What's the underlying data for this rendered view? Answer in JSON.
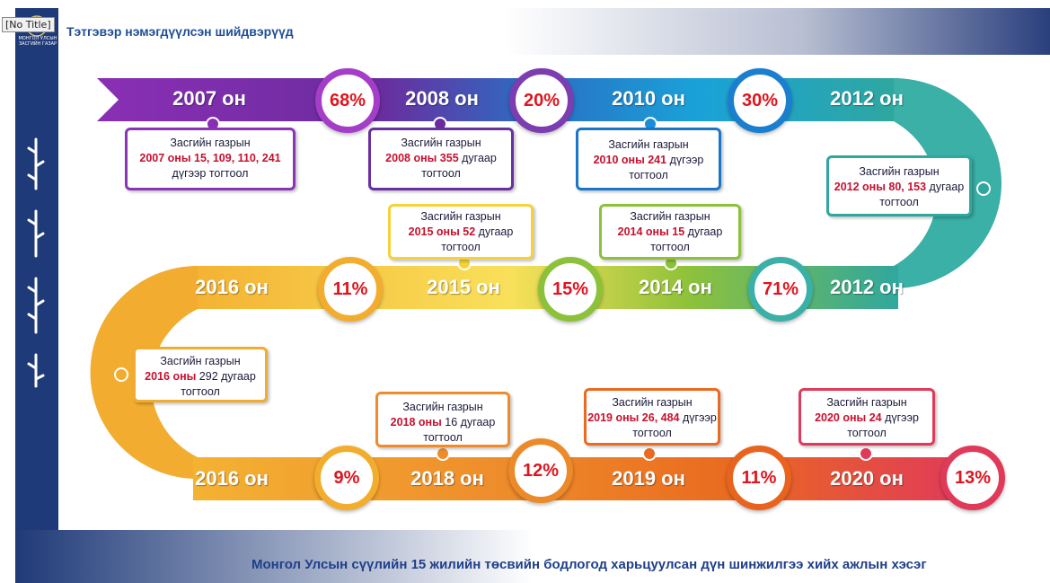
{
  "window": {
    "title": "[No Title]"
  },
  "logo": {
    "line1": "МОНГОЛ УЛСЫН",
    "line2": "ЗАСГИЙН ГАЗАР"
  },
  "header": {
    "title": "Тэтгэвэр нэмэгдүүлсэн шийдвэрүүд"
  },
  "footer": {
    "text": "Монгол Улсын сүүлийн 15 жилийн төсвийн бодлогод харьцуулсан дүн шинжилгээ хийх ажлын хэсэг"
  },
  "timeline": {
    "row1": [
      {
        "year": "2007 он",
        "pct": "68%",
        "color": "#8a35b8"
      },
      {
        "year": "2008 он",
        "pct": "20%",
        "color": "#6a2fa0"
      },
      {
        "year": "2010 он",
        "pct": "30%",
        "color": "#1976c8"
      },
      {
        "year": "2012 он",
        "color": "#2fa79e"
      }
    ],
    "row2": [
      {
        "year": "2016 он",
        "pct": "11%",
        "color": "#f0a52a"
      },
      {
        "year": "2015 он",
        "pct": "15%",
        "color": "#f7d33c"
      },
      {
        "year": "2014 он",
        "pct": "71%",
        "color": "#7cbf3c"
      },
      {
        "year": "2012 он",
        "color": "#2fa79e"
      }
    ],
    "row3": [
      {
        "year": "2016 он",
        "pct": "9%",
        "color": "#f0a52a"
      },
      {
        "year": "2018 он",
        "pct": "12%",
        "color": "#ec8a2a"
      },
      {
        "year": "2019 он",
        "pct": "11%",
        "color": "#e8641e"
      },
      {
        "year": "2020 он",
        "pct": "13%",
        "color": "#e03a5a"
      }
    ]
  },
  "notes": [
    {
      "l1": "Засгийн газрын",
      "l2": "2007 оны 15, 109, 110, 241",
      "l3": " дүгээр тогтоол"
    },
    {
      "l1": "Засгийн газрын",
      "l2": "2008 оны 355",
      "l3": " дугаар тогтоол"
    },
    {
      "l1": "Засгийн газрын",
      "l2": "2010 оны 241",
      "l3": " дүгээр тогтоол"
    },
    {
      "l1": "Засгийн газрын",
      "l2": "2012 оны 80, 153",
      "l3": " дугаар тогтоол"
    },
    {
      "l1": "Засгийн газрын",
      "l2": "2015 оны 52",
      "l3": " дугаар тогтоол"
    },
    {
      "l1": "Засгийн газрын",
      "l2": "2014 оны 15",
      "l3": " дугаар тогтоол"
    },
    {
      "l1": "Засгийн газрын",
      "l2": "2016 оны",
      "l3": " 292 дугаар тогтоол"
    },
    {
      "l1": "Засгийн газрын",
      "l2": "2018 оны",
      "l3": " 16 дугаар тогтоол"
    },
    {
      "l1": "Засгийн газрын",
      "l2": "2019 оны 26, 484",
      "l3": " дүгээр тогтоол"
    },
    {
      "l1": "Засгийн газрын",
      "l2": "2020 оны 24",
      "l3": " дүгээр тогтоол"
    }
  ]
}
